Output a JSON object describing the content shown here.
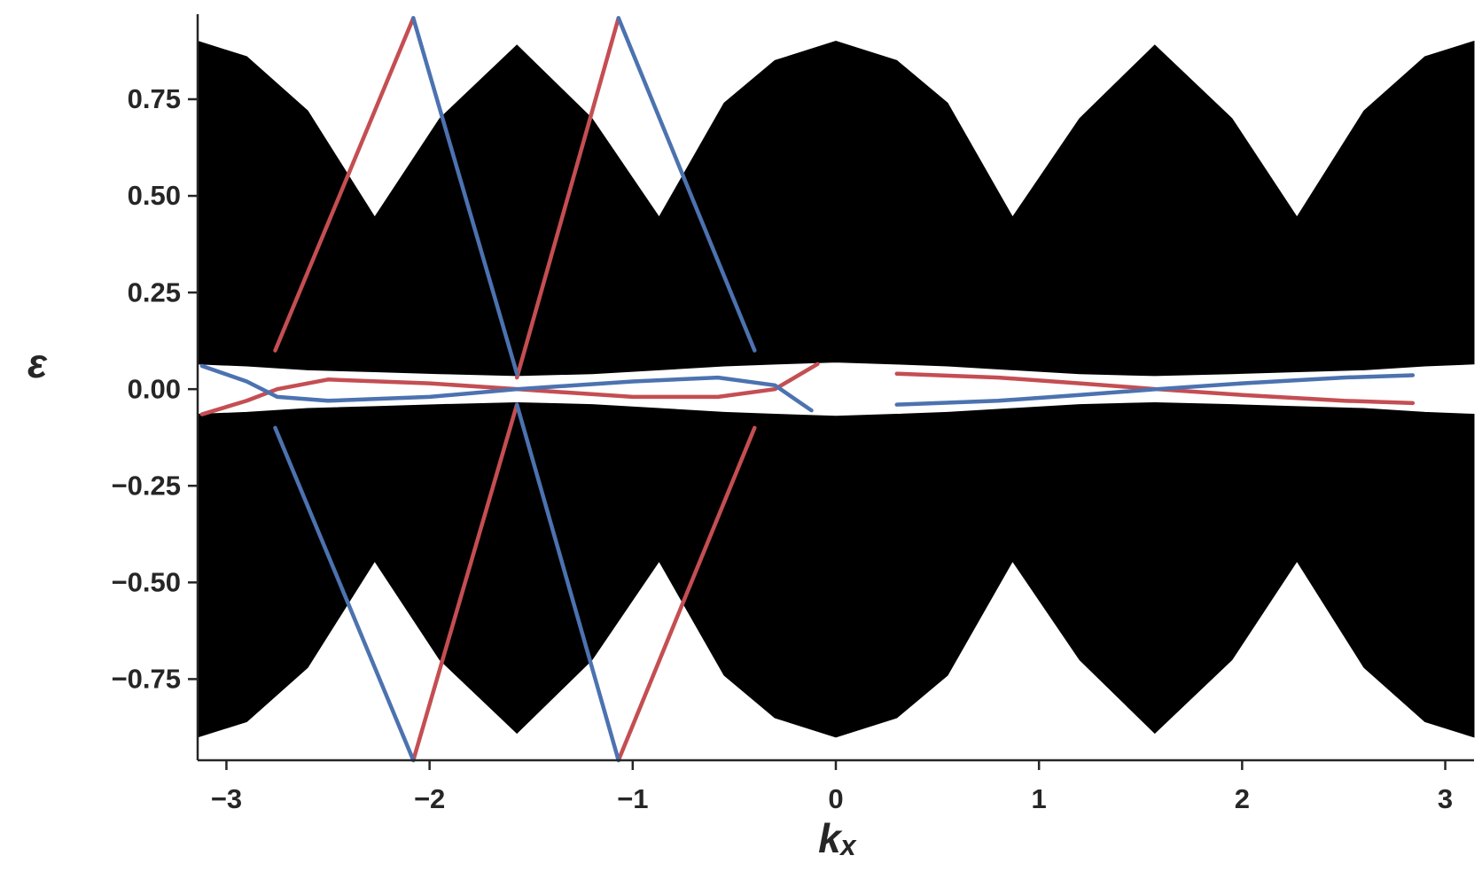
{
  "chart_data": {
    "type": "band_structure",
    "xlabel": "kₓ",
    "ylabel": "ε",
    "xlim": [
      -3.1416,
      3.1416
    ],
    "ylim": [
      -0.96,
      0.97
    ],
    "xticks": [
      {
        "value": -3,
        "label": "−3"
      },
      {
        "value": -2,
        "label": "−2"
      },
      {
        "value": -1,
        "label": "−1"
      },
      0,
      1,
      2,
      3
    ],
    "yticks": [
      {
        "value": -0.75,
        "label": "−0.75"
      },
      {
        "value": -0.5,
        "label": "−0.50"
      },
      {
        "value": -0.25,
        "label": "−0.25"
      },
      {
        "value": 0,
        "label": "0.00"
      },
      {
        "value": 0.25,
        "label": "0.25"
      },
      {
        "value": 0.5,
        "label": "0.50"
      },
      {
        "value": 0.75,
        "label": "0.75"
      }
    ],
    "bulk": {
      "color": "#000000",
      "x": [
        -3.1416,
        -2.9,
        -2.6,
        -2.27,
        -1.95,
        -1.57,
        -1.2,
        -0.87,
        -0.55,
        -0.3,
        0,
        0.3,
        0.55,
        0.87,
        1.2,
        1.57,
        1.95,
        2.27,
        2.6,
        2.9,
        3.1416
      ],
      "upper": {
        "top": [
          0.9,
          0.86,
          0.72,
          0.445,
          0.7,
          0.89,
          0.7,
          0.445,
          0.74,
          0.85,
          0.9,
          0.85,
          0.74,
          0.445,
          0.7,
          0.89,
          0.7,
          0.445,
          0.72,
          0.86,
          0.9
        ],
        "bottom": [
          0.065,
          0.06,
          0.05,
          0.045,
          0.04,
          0.035,
          0.04,
          0.05,
          0.06,
          0.065,
          0.07,
          0.065,
          0.06,
          0.05,
          0.04,
          0.035,
          0.04,
          0.045,
          0.05,
          0.06,
          0.065
        ]
      },
      "lower": {
        "top": [
          -0.065,
          -0.06,
          -0.05,
          -0.045,
          -0.04,
          -0.035,
          -0.04,
          -0.05,
          -0.06,
          -0.065,
          -0.07,
          -0.065,
          -0.06,
          -0.05,
          -0.04,
          -0.035,
          -0.04,
          -0.045,
          -0.05,
          -0.06,
          -0.065
        ],
        "bottom": [
          -0.9,
          -0.86,
          -0.72,
          -0.445,
          -0.7,
          -0.89,
          -0.7,
          -0.445,
          -0.74,
          -0.85,
          -0.9,
          -0.85,
          -0.74,
          -0.445,
          -0.7,
          -0.89,
          -0.7,
          -0.445,
          -0.72,
          -0.86,
          -0.9
        ]
      }
    },
    "series": [
      {
        "color": "#c44e52",
        "x": [
          -3.12,
          -2.9,
          -2.75,
          -2.5,
          -2.0,
          -1.57,
          -1.0,
          -0.58,
          -0.3,
          -0.09,
          null,
          0.3,
          0.8,
          1.2,
          1.58,
          2.0,
          2.5,
          2.84,
          null,
          -2.76,
          -2.08,
          null,
          -1.57,
          -1.07,
          null,
          -2.08,
          -1.57,
          null,
          -1.07,
          -0.4
        ],
        "values": [
          -0.065,
          -0.03,
          0.0,
          0.025,
          0.015,
          0.0,
          -0.02,
          -0.02,
          0.0,
          0.065,
          null,
          0.04,
          0.03,
          0.015,
          0.0,
          -0.015,
          -0.03,
          -0.036,
          null,
          0.1,
          0.96,
          null,
          0.03,
          0.96,
          null,
          -0.96,
          -0.04,
          null,
          -0.96,
          -0.1
        ]
      },
      {
        "color": "#4c72b0",
        "x": [
          -3.12,
          -2.9,
          -2.75,
          -2.5,
          -2.0,
          -1.57,
          -1.0,
          -0.58,
          -0.3,
          -0.12,
          null,
          0.3,
          0.8,
          1.2,
          1.58,
          2.0,
          2.5,
          2.84,
          null,
          -2.08,
          -1.57,
          null,
          -1.07,
          -0.4,
          null,
          -2.76,
          -2.08,
          null,
          -1.57,
          -1.07
        ],
        "values": [
          0.06,
          0.02,
          -0.02,
          -0.03,
          -0.02,
          0.0,
          0.02,
          0.03,
          0.01,
          -0.055,
          null,
          -0.04,
          -0.03,
          -0.015,
          0.0,
          0.015,
          0.03,
          0.036,
          null,
          0.96,
          0.04,
          null,
          0.96,
          0.1,
          null,
          -0.1,
          -0.96,
          null,
          -0.04,
          -0.96
        ]
      }
    ]
  }
}
